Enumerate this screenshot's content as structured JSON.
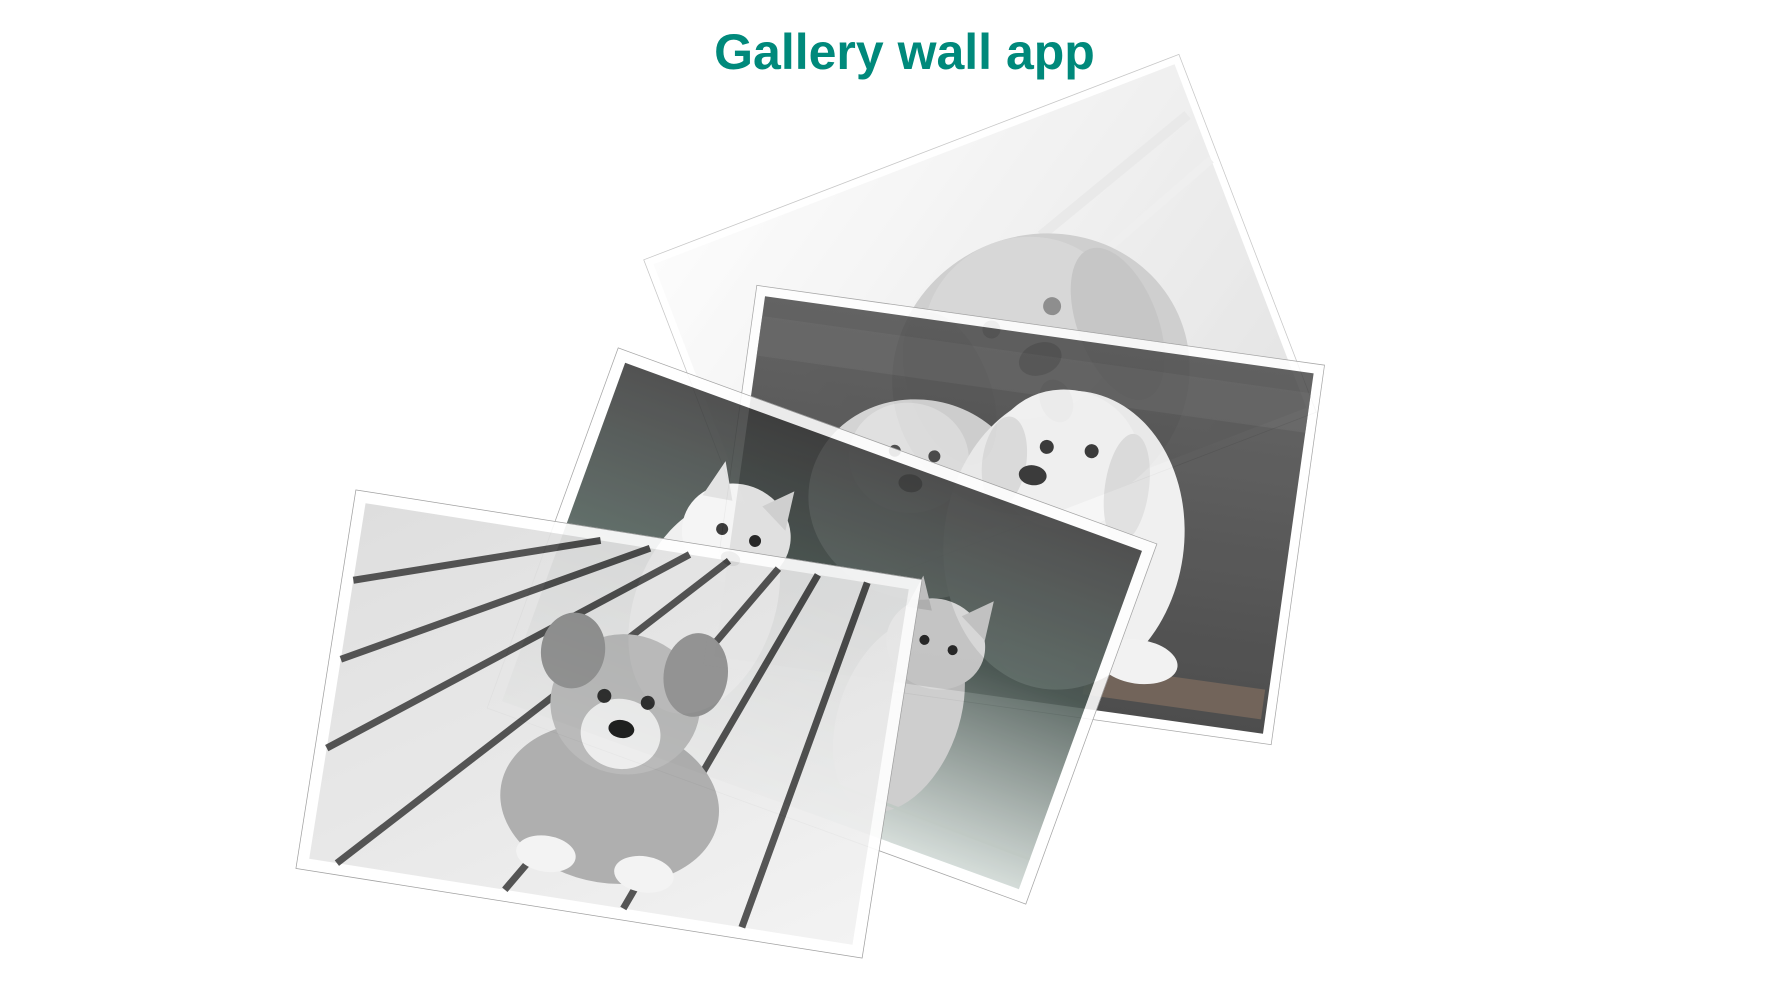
{
  "app": {
    "title": "Gallery wall app",
    "title_color": "#00897b"
  },
  "gallery": {
    "photos": [
      {
        "subject": "golden retriever puppy",
        "icon": "puppy-photo"
      },
      {
        "subject": "two golden retriever puppies",
        "icon": "puppy-photo"
      },
      {
        "subject": "two shiba puppies on grass",
        "icon": "puppy-photo"
      },
      {
        "subject": "corgi puppy on wooden deck",
        "icon": "puppy-photo"
      }
    ]
  }
}
